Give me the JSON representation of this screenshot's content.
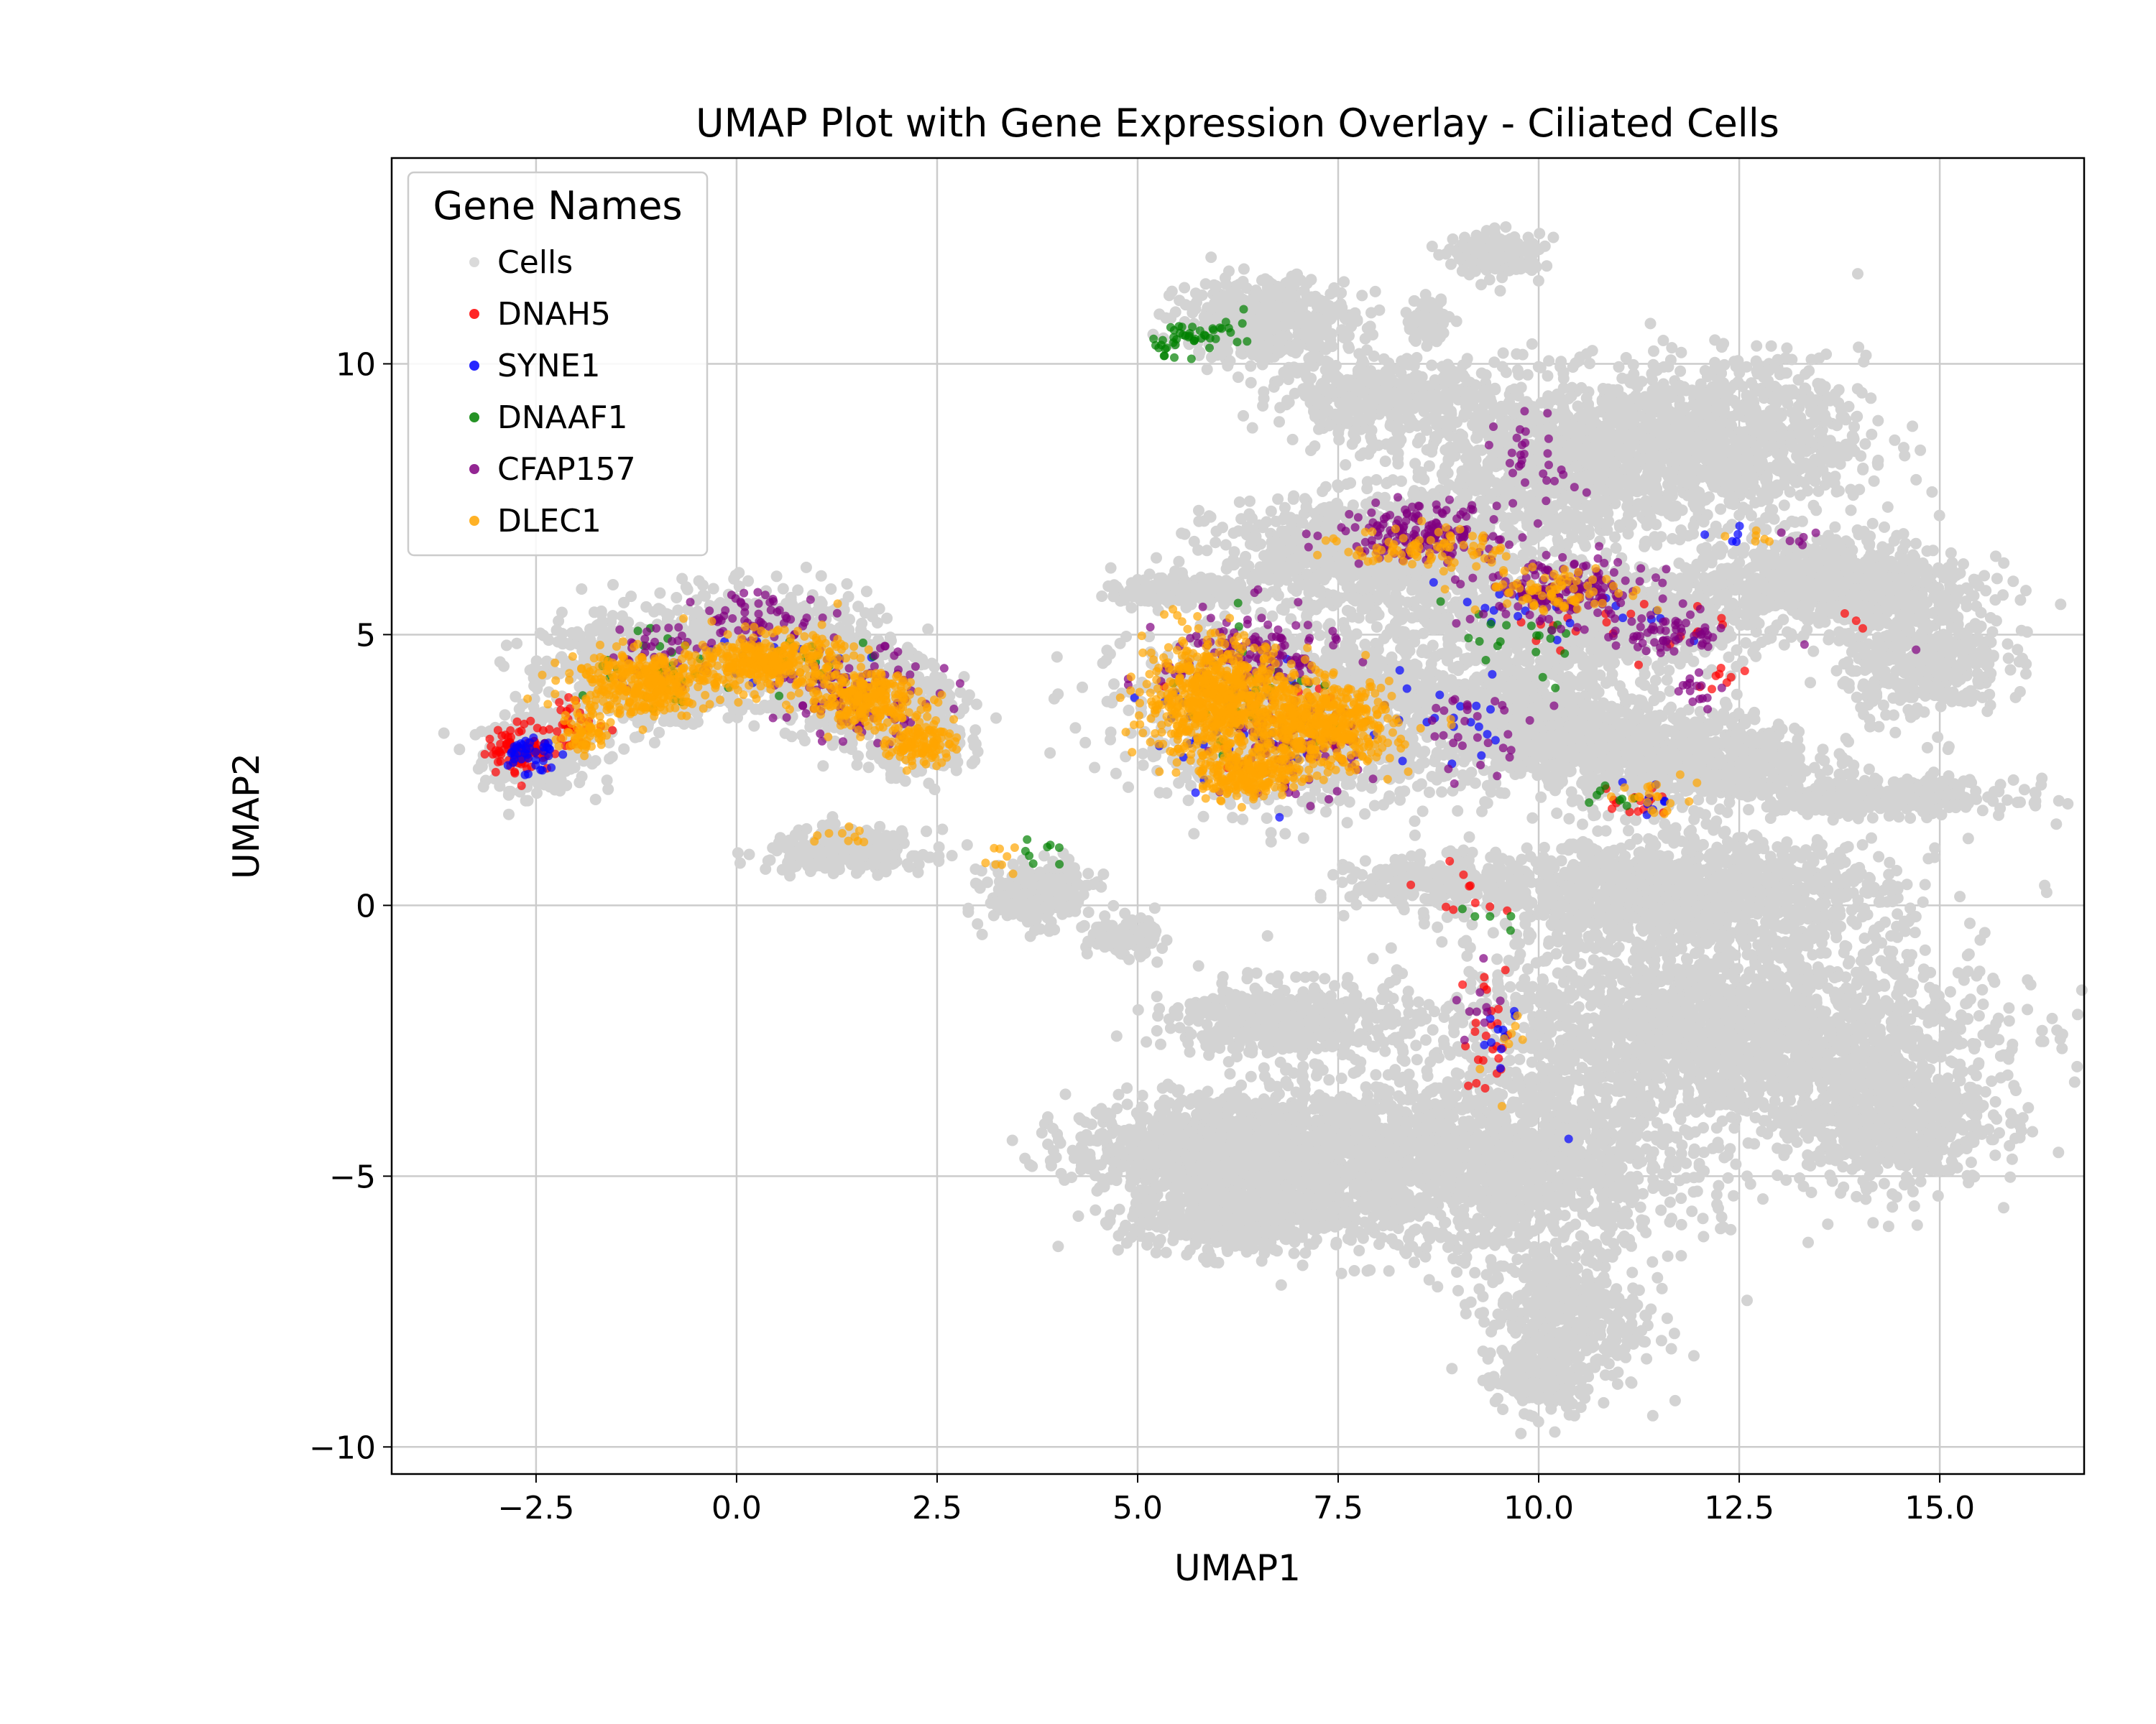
{
  "chart_data": {
    "type": "scatter",
    "title": "UMAP Plot with Gene Expression Overlay - Ciliated Cells",
    "xlabel": "UMAP1",
    "ylabel": "UMAP2",
    "xlim": [
      -4.3,
      16.8
    ],
    "ylim": [
      -10.5,
      13.8
    ],
    "xticks": [
      -2.5,
      0.0,
      2.5,
      5.0,
      7.5,
      10.0,
      12.5,
      15.0
    ],
    "xtick_labels": [
      "−2.5",
      "0.0",
      "2.5",
      "5.0",
      "7.5",
      "10.0",
      "12.5",
      "15.0"
    ],
    "yticks": [
      -10,
      -5,
      0,
      5,
      10
    ],
    "ytick_labels": [
      "−10",
      "−5",
      "0",
      "5",
      "10"
    ],
    "grid": true,
    "legend": {
      "title": "Gene Names",
      "position": "top-left"
    },
    "background_cells": {
      "name": "Cells",
      "color": "#d3d3d3",
      "regions": [
        {
          "cx": -2.5,
          "cy": 2.8,
          "rx": 0.6,
          "ry": 0.6,
          "n": 350
        },
        {
          "cx": -1.3,
          "cy": 4.3,
          "rx": 1.0,
          "ry": 0.9,
          "n": 700
        },
        {
          "cx": 0.3,
          "cy": 4.8,
          "rx": 1.2,
          "ry": 0.9,
          "n": 900
        },
        {
          "cx": 1.6,
          "cy": 3.9,
          "rx": 0.9,
          "ry": 0.8,
          "n": 600
        },
        {
          "cx": 2.3,
          "cy": 3.0,
          "rx": 0.5,
          "ry": 0.5,
          "n": 250
        },
        {
          "cx": 1.4,
          "cy": 1.0,
          "rx": 0.9,
          "ry": 0.35,
          "n": 300
        },
        {
          "cx": 3.8,
          "cy": 0.2,
          "rx": 0.6,
          "ry": 0.5,
          "n": 300
        },
        {
          "cx": 4.8,
          "cy": -0.6,
          "rx": 0.4,
          "ry": 0.3,
          "n": 120
        },
        {
          "cx": 6.6,
          "cy": 10.8,
          "rx": 1.0,
          "ry": 0.7,
          "n": 500
        },
        {
          "cx": 8.0,
          "cy": 9.4,
          "rx": 1.2,
          "ry": 0.6,
          "n": 400
        },
        {
          "cx": 9.5,
          "cy": 12.0,
          "rx": 0.5,
          "ry": 0.35,
          "n": 200
        },
        {
          "cx": 8.6,
          "cy": 10.8,
          "rx": 0.25,
          "ry": 0.35,
          "n": 80
        },
        {
          "cx": 10.2,
          "cy": 8.2,
          "rx": 1.8,
          "ry": 1.4,
          "n": 1200
        },
        {
          "cx": 12.4,
          "cy": 8.6,
          "rx": 1.5,
          "ry": 1.3,
          "n": 900
        },
        {
          "cx": 13.6,
          "cy": 6.0,
          "rx": 1.6,
          "ry": 0.8,
          "n": 800
        },
        {
          "cx": 14.8,
          "cy": 4.6,
          "rx": 0.9,
          "ry": 1.0,
          "n": 450
        },
        {
          "cx": 8.0,
          "cy": 6.5,
          "rx": 1.8,
          "ry": 0.9,
          "n": 1000
        },
        {
          "cx": 10.5,
          "cy": 5.3,
          "rx": 1.9,
          "ry": 0.8,
          "n": 1000
        },
        {
          "cx": 7.0,
          "cy": 3.6,
          "rx": 1.8,
          "ry": 1.5,
          "n": 1400
        },
        {
          "cx": 5.6,
          "cy": 5.8,
          "rx": 0.7,
          "ry": 0.25,
          "n": 200
        },
        {
          "cx": 9.8,
          "cy": 3.4,
          "rx": 1.4,
          "ry": 1.0,
          "n": 900
        },
        {
          "cx": 11.8,
          "cy": 2.7,
          "rx": 1.5,
          "ry": 0.8,
          "n": 800
        },
        {
          "cx": 14.2,
          "cy": 2.0,
          "rx": 1.6,
          "ry": 0.3,
          "n": 400
        },
        {
          "cx": 8.8,
          "cy": 0.4,
          "rx": 1.0,
          "ry": 0.4,
          "n": 300
        },
        {
          "cx": 11.8,
          "cy": 0.2,
          "rx": 2.3,
          "ry": 0.9,
          "n": 1400
        },
        {
          "cx": 12.2,
          "cy": -2.3,
          "rx": 3.0,
          "ry": 1.5,
          "n": 2200
        },
        {
          "cx": 14.3,
          "cy": -3.9,
          "rx": 1.2,
          "ry": 1.2,
          "n": 700
        },
        {
          "cx": 9.5,
          "cy": -4.8,
          "rx": 2.2,
          "ry": 1.5,
          "n": 1700
        },
        {
          "cx": 7.0,
          "cy": -4.6,
          "rx": 1.4,
          "ry": 1.1,
          "n": 900
        },
        {
          "cx": 6.8,
          "cy": -2.1,
          "rx": 1.2,
          "ry": 0.6,
          "n": 500
        },
        {
          "cx": 5.6,
          "cy": -4.5,
          "rx": 1.3,
          "ry": 0.8,
          "n": 700
        },
        {
          "cx": 6.2,
          "cy": -5.8,
          "rx": 1.2,
          "ry": 0.6,
          "n": 500
        },
        {
          "cx": 10.3,
          "cy": -7.6,
          "rx": 0.9,
          "ry": 1.3,
          "n": 500
        },
        {
          "cx": 10.0,
          "cy": -8.8,
          "rx": 0.4,
          "ry": 0.5,
          "n": 150
        }
      ]
    },
    "series": [
      {
        "name": "DNAH5",
        "color": "#ff0000",
        "clusters": [
          {
            "cx": -2.7,
            "cy": 2.9,
            "rx": 0.4,
            "ry": 0.45,
            "n": 90
          },
          {
            "cx": -2.0,
            "cy": 3.3,
            "rx": 0.35,
            "ry": 0.5,
            "n": 30
          },
          {
            "cx": 9.4,
            "cy": -2.3,
            "rx": 0.35,
            "ry": 1.2,
            "n": 25
          },
          {
            "cx": 11.2,
            "cy": 1.9,
            "rx": 0.5,
            "ry": 0.4,
            "n": 15
          },
          {
            "cx": 10.8,
            "cy": 5.2,
            "rx": 1.4,
            "ry": 0.5,
            "n": 20
          },
          {
            "cx": 9.0,
            "cy": 0.2,
            "rx": 0.5,
            "ry": 0.5,
            "n": 10
          },
          {
            "cx": 6.8,
            "cy": 3.6,
            "rx": 1.0,
            "ry": 1.0,
            "n": 15
          },
          {
            "cx": 12.2,
            "cy": 4.2,
            "rx": 0.3,
            "ry": 0.3,
            "n": 8
          },
          {
            "cx": 13.8,
            "cy": 5.3,
            "rx": 0.3,
            "ry": 0.2,
            "n": 3
          }
        ]
      },
      {
        "name": "SYNE1",
        "color": "#0000ff",
        "clusters": [
          {
            "cx": -2.6,
            "cy": 2.8,
            "rx": 0.35,
            "ry": 0.4,
            "n": 40
          },
          {
            "cx": 6.4,
            "cy": 3.5,
            "rx": 1.2,
            "ry": 1.2,
            "n": 60
          },
          {
            "cx": 9.0,
            "cy": 3.4,
            "rx": 1.0,
            "ry": 0.9,
            "n": 20
          },
          {
            "cx": 10.2,
            "cy": 5.3,
            "rx": 1.5,
            "ry": 0.6,
            "n": 20
          },
          {
            "cx": 9.5,
            "cy": -2.5,
            "rx": 0.3,
            "ry": 1.0,
            "n": 10
          },
          {
            "cx": 0.5,
            "cy": 4.5,
            "rx": 1.0,
            "ry": 0.7,
            "n": 15
          },
          {
            "cx": 11.3,
            "cy": 1.9,
            "rx": 0.5,
            "ry": 0.4,
            "n": 8
          },
          {
            "cx": 10.4,
            "cy": -4.3,
            "rx": 0.05,
            "ry": 0.05,
            "n": 1
          },
          {
            "cx": 12.4,
            "cy": 6.8,
            "rx": 0.4,
            "ry": 0.3,
            "n": 5
          }
        ]
      },
      {
        "name": "DNAAF1",
        "color": "#008000",
        "clusters": [
          {
            "cx": 5.6,
            "cy": 10.5,
            "rx": 0.4,
            "ry": 0.3,
            "n": 35
          },
          {
            "cx": 6.2,
            "cy": 10.6,
            "rx": 0.3,
            "ry": 0.3,
            "n": 12
          },
          {
            "cx": -0.9,
            "cy": 4.2,
            "rx": 1.0,
            "ry": 0.7,
            "n": 30
          },
          {
            "cx": 1.2,
            "cy": 4.4,
            "rx": 0.8,
            "ry": 0.6,
            "n": 15
          },
          {
            "cx": 6.5,
            "cy": 3.6,
            "rx": 1.2,
            "ry": 1.2,
            "n": 30
          },
          {
            "cx": 9.6,
            "cy": 4.8,
            "rx": 1.3,
            "ry": 0.8,
            "n": 20
          },
          {
            "cx": 3.8,
            "cy": 0.8,
            "rx": 0.5,
            "ry": 0.5,
            "n": 8
          },
          {
            "cx": 11.0,
            "cy": 2.0,
            "rx": 0.5,
            "ry": 0.4,
            "n": 8
          },
          {
            "cx": 9.2,
            "cy": -0.3,
            "rx": 0.4,
            "ry": 0.5,
            "n": 5
          }
        ]
      },
      {
        "name": "CFAP157",
        "color": "#800080",
        "clusters": [
          {
            "cx": 8.5,
            "cy": 6.9,
            "rx": 1.0,
            "ry": 0.5,
            "n": 160
          },
          {
            "cx": 10.3,
            "cy": 5.8,
            "rx": 1.1,
            "ry": 0.6,
            "n": 160
          },
          {
            "cx": 11.6,
            "cy": 5.0,
            "rx": 0.8,
            "ry": 0.4,
            "n": 60
          },
          {
            "cx": 10.0,
            "cy": 8.2,
            "rx": 0.5,
            "ry": 0.8,
            "n": 30
          },
          {
            "cx": 6.4,
            "cy": 4.6,
            "rx": 1.1,
            "ry": 0.9,
            "n": 130
          },
          {
            "cx": 6.9,
            "cy": 2.8,
            "rx": 0.9,
            "ry": 0.8,
            "n": 80
          },
          {
            "cx": 1.5,
            "cy": 3.9,
            "rx": 1.0,
            "ry": 0.8,
            "n": 110
          },
          {
            "cx": 0.3,
            "cy": 5.3,
            "rx": 0.8,
            "ry": 0.5,
            "n": 60
          },
          {
            "cx": -0.9,
            "cy": 4.7,
            "rx": 0.7,
            "ry": 0.6,
            "n": 40
          },
          {
            "cx": 9.2,
            "cy": 3.2,
            "rx": 0.8,
            "ry": 0.7,
            "n": 30
          },
          {
            "cx": 12.0,
            "cy": 4.0,
            "rx": 0.3,
            "ry": 0.3,
            "n": 15
          },
          {
            "cx": 9.3,
            "cy": -1.8,
            "rx": 0.3,
            "ry": 0.9,
            "n": 10
          },
          {
            "cx": 13.2,
            "cy": 6.8,
            "rx": 0.3,
            "ry": 0.2,
            "n": 6
          },
          {
            "cx": 14.6,
            "cy": 4.8,
            "rx": 0.1,
            "ry": 0.1,
            "n": 1
          }
        ]
      },
      {
        "name": "DLEC1",
        "color": "#ffa500",
        "clusters": [
          {
            "cx": 6.0,
            "cy": 3.8,
            "rx": 0.9,
            "ry": 1.1,
            "n": 700
          },
          {
            "cx": 7.3,
            "cy": 3.3,
            "rx": 0.9,
            "ry": 0.8,
            "n": 500
          },
          {
            "cx": 6.4,
            "cy": 2.4,
            "rx": 0.6,
            "ry": 0.4,
            "n": 200
          },
          {
            "cx": -1.2,
            "cy": 4.1,
            "rx": 0.9,
            "ry": 0.6,
            "n": 350
          },
          {
            "cx": 0.4,
            "cy": 4.5,
            "rx": 0.9,
            "ry": 0.5,
            "n": 350
          },
          {
            "cx": 1.6,
            "cy": 3.8,
            "rx": 0.7,
            "ry": 0.5,
            "n": 250
          },
          {
            "cx": 2.3,
            "cy": 3.0,
            "rx": 0.4,
            "ry": 0.4,
            "n": 120
          },
          {
            "cx": -1.9,
            "cy": 3.2,
            "rx": 0.3,
            "ry": 0.4,
            "n": 60
          },
          {
            "cx": 8.6,
            "cy": 6.6,
            "rx": 1.0,
            "ry": 0.4,
            "n": 80
          },
          {
            "cx": 10.3,
            "cy": 5.8,
            "rx": 1.0,
            "ry": 0.4,
            "n": 80
          },
          {
            "cx": 11.4,
            "cy": 2.0,
            "rx": 0.6,
            "ry": 0.4,
            "n": 20
          },
          {
            "cx": 1.2,
            "cy": 1.3,
            "rx": 0.4,
            "ry": 0.2,
            "n": 10
          },
          {
            "cx": 3.3,
            "cy": 0.8,
            "rx": 0.3,
            "ry": 0.4,
            "n": 8
          },
          {
            "cx": 12.8,
            "cy": 6.8,
            "rx": 0.5,
            "ry": 0.2,
            "n": 6
          },
          {
            "cx": 9.6,
            "cy": -2.5,
            "rx": 0.4,
            "ry": 1.0,
            "n": 8
          }
        ]
      }
    ]
  }
}
